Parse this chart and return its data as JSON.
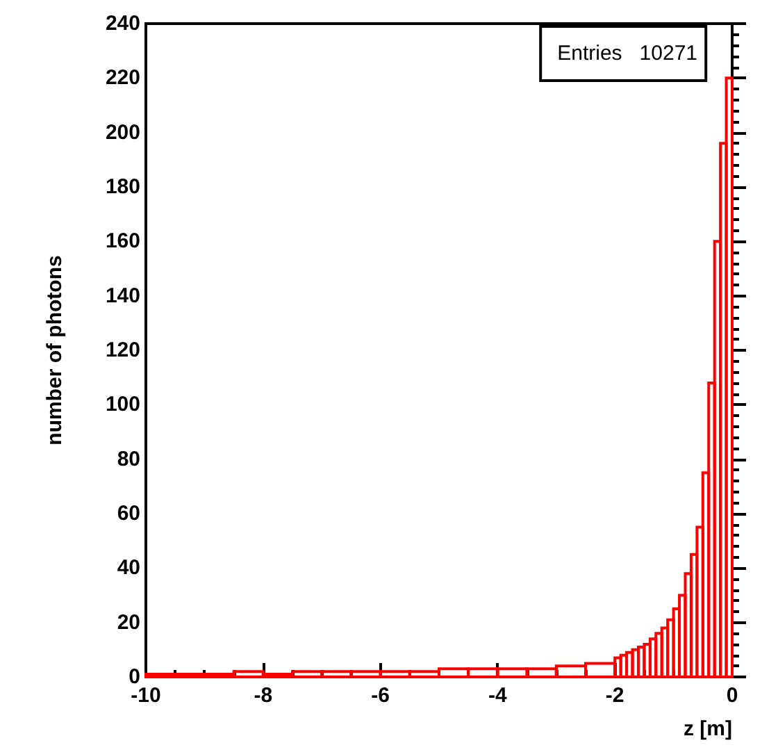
{
  "chart_data": {
    "type": "histogram",
    "xlabel": "z [m]",
    "ylabel": "number of photons",
    "annotations": [
      "Entries   10271"
    ],
    "bins": [
      -10,
      -9.5,
      -9,
      -8.5,
      -8,
      -7.5,
      -7,
      -6.5,
      -6,
      -5.5,
      -5,
      -4.5,
      -4,
      -3.5,
      -3,
      -2.5,
      -2,
      -1.9,
      -1.8,
      -1.7,
      -1.6,
      -1.5,
      -1.4,
      -1.3,
      -1.2,
      -1.1,
      -1,
      -0.9,
      -0.8,
      -0.7,
      -0.6,
      -0.5,
      -0.4,
      -0.3,
      -0.2,
      -0.1,
      0
    ],
    "values": [
      1,
      1,
      1,
      2,
      1,
      2,
      2,
      2,
      2,
      2,
      3,
      3,
      3,
      3,
      4,
      5,
      7,
      8,
      9,
      10,
      11,
      12,
      14,
      16,
      18,
      21,
      25,
      30,
      38,
      45,
      55,
      75,
      108,
      160,
      196,
      220
    ],
    "color": "#ff0000",
    "xlim": [
      -10,
      0
    ],
    "xticks": [
      -10,
      -8,
      -6,
      -4,
      -2,
      0
    ],
    "ylim": [
      0,
      240
    ],
    "yticks": [
      0,
      20,
      40,
      60,
      80,
      100,
      120,
      140,
      160,
      180,
      200,
      220,
      240
    ],
    "grid": false
  }
}
